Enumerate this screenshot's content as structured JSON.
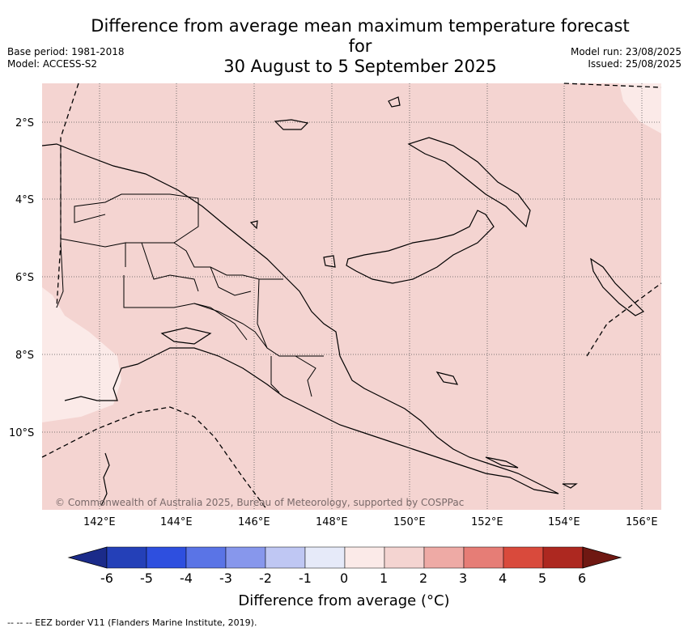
{
  "title": {
    "line1": "Difference from average mean maximum temperature forecast for",
    "line2": "30 August to 5 September 2025"
  },
  "meta_left": {
    "base_period": "Base period: 1981-2018",
    "model": "Model: ACCESS-S2"
  },
  "meta_right": {
    "model_run": "Model run: 23/08/2025",
    "issued": "Issued: 25/08/2025"
  },
  "map": {
    "lat_labels": [
      "2°S",
      "4°S",
      "6°S",
      "8°S",
      "10°S"
    ],
    "lon_labels": [
      "142°E",
      "144°E",
      "146°E",
      "148°E",
      "150°E",
      "152°E",
      "154°E",
      "156°E"
    ],
    "copyright": "© Commonwealth of Australia 2025, Bureau of Meteorology, supported by COSPPac",
    "fill_main": "#f4d4d1",
    "fill_light": "#fbeae8"
  },
  "colorbar": {
    "ticks": [
      "-6",
      "-5",
      "-4",
      "-3",
      "-2",
      "-1",
      "0",
      "1",
      "2",
      "3",
      "4",
      "5",
      "6"
    ],
    "colors": [
      "#1b2b8a",
      "#2440b8",
      "#2e4fdf",
      "#5a74e6",
      "#8797ec",
      "#bfc7f3",
      "#e6eaf9",
      "#fbeae8",
      "#f4d4d1",
      "#eeaaa5",
      "#e67d76",
      "#d94a3c",
      "#ad2820",
      "#6f1812"
    ],
    "title": "Difference from average (°C)"
  },
  "footnote": "--  --  -- EEZ border V11 (Flanders Marine Institute, 2019)."
}
